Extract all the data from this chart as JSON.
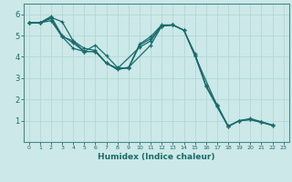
{
  "xlabel": "Humidex (Indice chaleur)",
  "ylabel": "",
  "background_color": "#cce8e8",
  "grid_color": "#b0d4d4",
  "line_color": "#1a6b6b",
  "xlim": [
    -0.5,
    23.5
  ],
  "ylim": [
    0,
    6.5
  ],
  "xticks": [
    0,
    1,
    2,
    3,
    4,
    5,
    6,
    7,
    8,
    9,
    10,
    11,
    12,
    13,
    14,
    15,
    16,
    17,
    18,
    19,
    20,
    21,
    22,
    23
  ],
  "yticks": [
    1,
    2,
    3,
    4,
    5,
    6
  ],
  "series": [
    {
      "x": [
        0,
        1,
        2,
        3,
        4,
        5,
        6,
        7,
        8,
        9,
        10,
        11,
        12,
        13,
        14,
        15,
        16,
        17,
        18,
        19,
        20,
        21,
        22
      ],
      "y": [
        5.6,
        5.6,
        5.85,
        5.65,
        4.75,
        4.4,
        4.3,
        3.7,
        3.45,
        3.5,
        4.6,
        4.95,
        5.5,
        5.5,
        5.25,
        4.15,
        2.65,
        1.75,
        0.75,
        1.0,
        1.1,
        0.95,
        0.8
      ]
    },
    {
      "x": [
        0,
        1,
        2,
        3,
        4,
        5,
        6,
        7,
        8,
        9,
        11,
        12,
        13,
        14,
        15,
        17,
        18,
        19,
        20,
        21,
        22
      ],
      "y": [
        5.6,
        5.6,
        5.7,
        4.95,
        4.4,
        4.25,
        4.25,
        3.7,
        3.4,
        3.5,
        4.55,
        5.45,
        5.5,
        5.25,
        4.05,
        1.7,
        0.72,
        1.0,
        1.05,
        0.92,
        0.78
      ]
    },
    {
      "x": [
        0,
        1,
        2,
        3,
        4,
        5,
        6,
        7,
        8,
        9,
        10,
        11,
        12,
        13
      ],
      "y": [
        5.6,
        5.6,
        5.8,
        4.95,
        4.75,
        4.25,
        4.55,
        4.05,
        3.5,
        3.45,
        4.55,
        4.85,
        5.45,
        5.5
      ]
    },
    {
      "x": [
        0,
        1,
        2,
        3,
        4,
        5,
        6,
        7,
        8,
        10,
        11,
        12,
        13,
        14,
        15,
        16,
        17,
        18,
        19,
        20,
        21,
        22
      ],
      "y": [
        5.6,
        5.6,
        5.9,
        5.0,
        4.65,
        4.25,
        4.25,
        3.7,
        3.45,
        4.45,
        4.75,
        5.45,
        5.5,
        5.25,
        4.05,
        2.6,
        1.65,
        0.72,
        1.0,
        1.05,
        0.92,
        0.78
      ]
    }
  ]
}
